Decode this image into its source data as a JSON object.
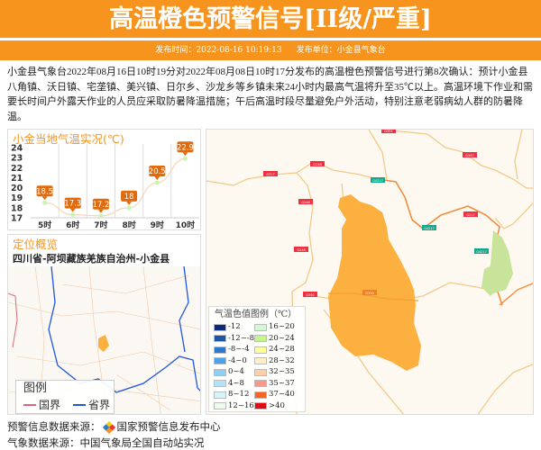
{
  "header": {
    "title": "高温橙色预警信号[II级/严重]",
    "publish_time_label": "发布时间：2022-08-16 10:19:13",
    "publisher_label": "发布单位：小金县气象台"
  },
  "description": "小金县气象台2022年08月16日10时19分对2022年08月08日10时17分发布的高温橙色预警信号进行第8次确认：预计小金县八角镇、沃日镇、宅垄镇、美兴镇、日尔乡、沙龙乡等乡镇未来24小时内最高气温将升至35℃以上。高温环境下作业和需要长时间户外露天作业的人员应采取防暑降温措施；午后高温时段尽量避免户外活动，特别注意老弱病幼人群的防暑降温。",
  "colors": {
    "brand": "#f7941d",
    "warning_area": "#fbb040"
  },
  "chart_data": {
    "type": "line",
    "title": "小金当地气温实况(℃)",
    "categories": [
      "5时",
      "6时",
      "7时",
      "8时",
      "9时",
      "10时"
    ],
    "values": [
      18.5,
      17.3,
      17.2,
      18,
      20.5,
      22.9
    ],
    "ylim": [
      17,
      24
    ],
    "yticks": [
      "17",
      "18",
      "19",
      "20",
      "21",
      "22",
      "23",
      "24"
    ],
    "grid": "vertical"
  },
  "overview": {
    "title": "定位概览",
    "location": "四川省-阿坝藏族羌族自治州-小金县",
    "legend_title": "图例",
    "legend_items": [
      {
        "label": "国界",
        "color": "#d9687a"
      },
      {
        "label": "省界",
        "color": "#2255dd"
      }
    ]
  },
  "map_legend": {
    "title": "气温色值图例（℃）",
    "items": [
      {
        "label": "-12",
        "color": "#0a2a7a"
      },
      {
        "label": "-12~-8",
        "color": "#1c56a6"
      },
      {
        "label": "-8~-4",
        "color": "#2f78d0"
      },
      {
        "label": "-4~0",
        "color": "#4aa3ea"
      },
      {
        "label": "0~4",
        "color": "#8ccff5"
      },
      {
        "label": "4~8",
        "color": "#b5e3f5"
      },
      {
        "label": "8~12",
        "color": "#d4f5fa"
      },
      {
        "label": "12~16",
        "color": "#eefaee"
      },
      {
        "label": "16~20",
        "color": "#d3f7d0"
      },
      {
        "label": "20~24",
        "color": "#c3f58a"
      },
      {
        "label": "24~28",
        "color": "#ffff99"
      },
      {
        "label": "28~32",
        "color": "#fdf0c8"
      },
      {
        "label": "32~35",
        "color": "#fdd0a8"
      },
      {
        "label": "35~37",
        "color": "#f7998a"
      },
      {
        "label": "37~40",
        "color": "#f96420"
      },
      {
        "label": ">40",
        "color": "#e00a14"
      }
    ]
  },
  "road_labels": [
    "G351",
    "G248",
    "G317",
    "G248",
    "G248",
    "G350",
    "G347",
    "G4217",
    "G4217",
    "G4217",
    "G317",
    "G350"
  ],
  "footer": {
    "warning_source": "预警信息数据来源：",
    "warning_source_name": "国家预警信息发布中心",
    "weather_source": "气象数据来源：中国气象局全国自动站实况"
  }
}
